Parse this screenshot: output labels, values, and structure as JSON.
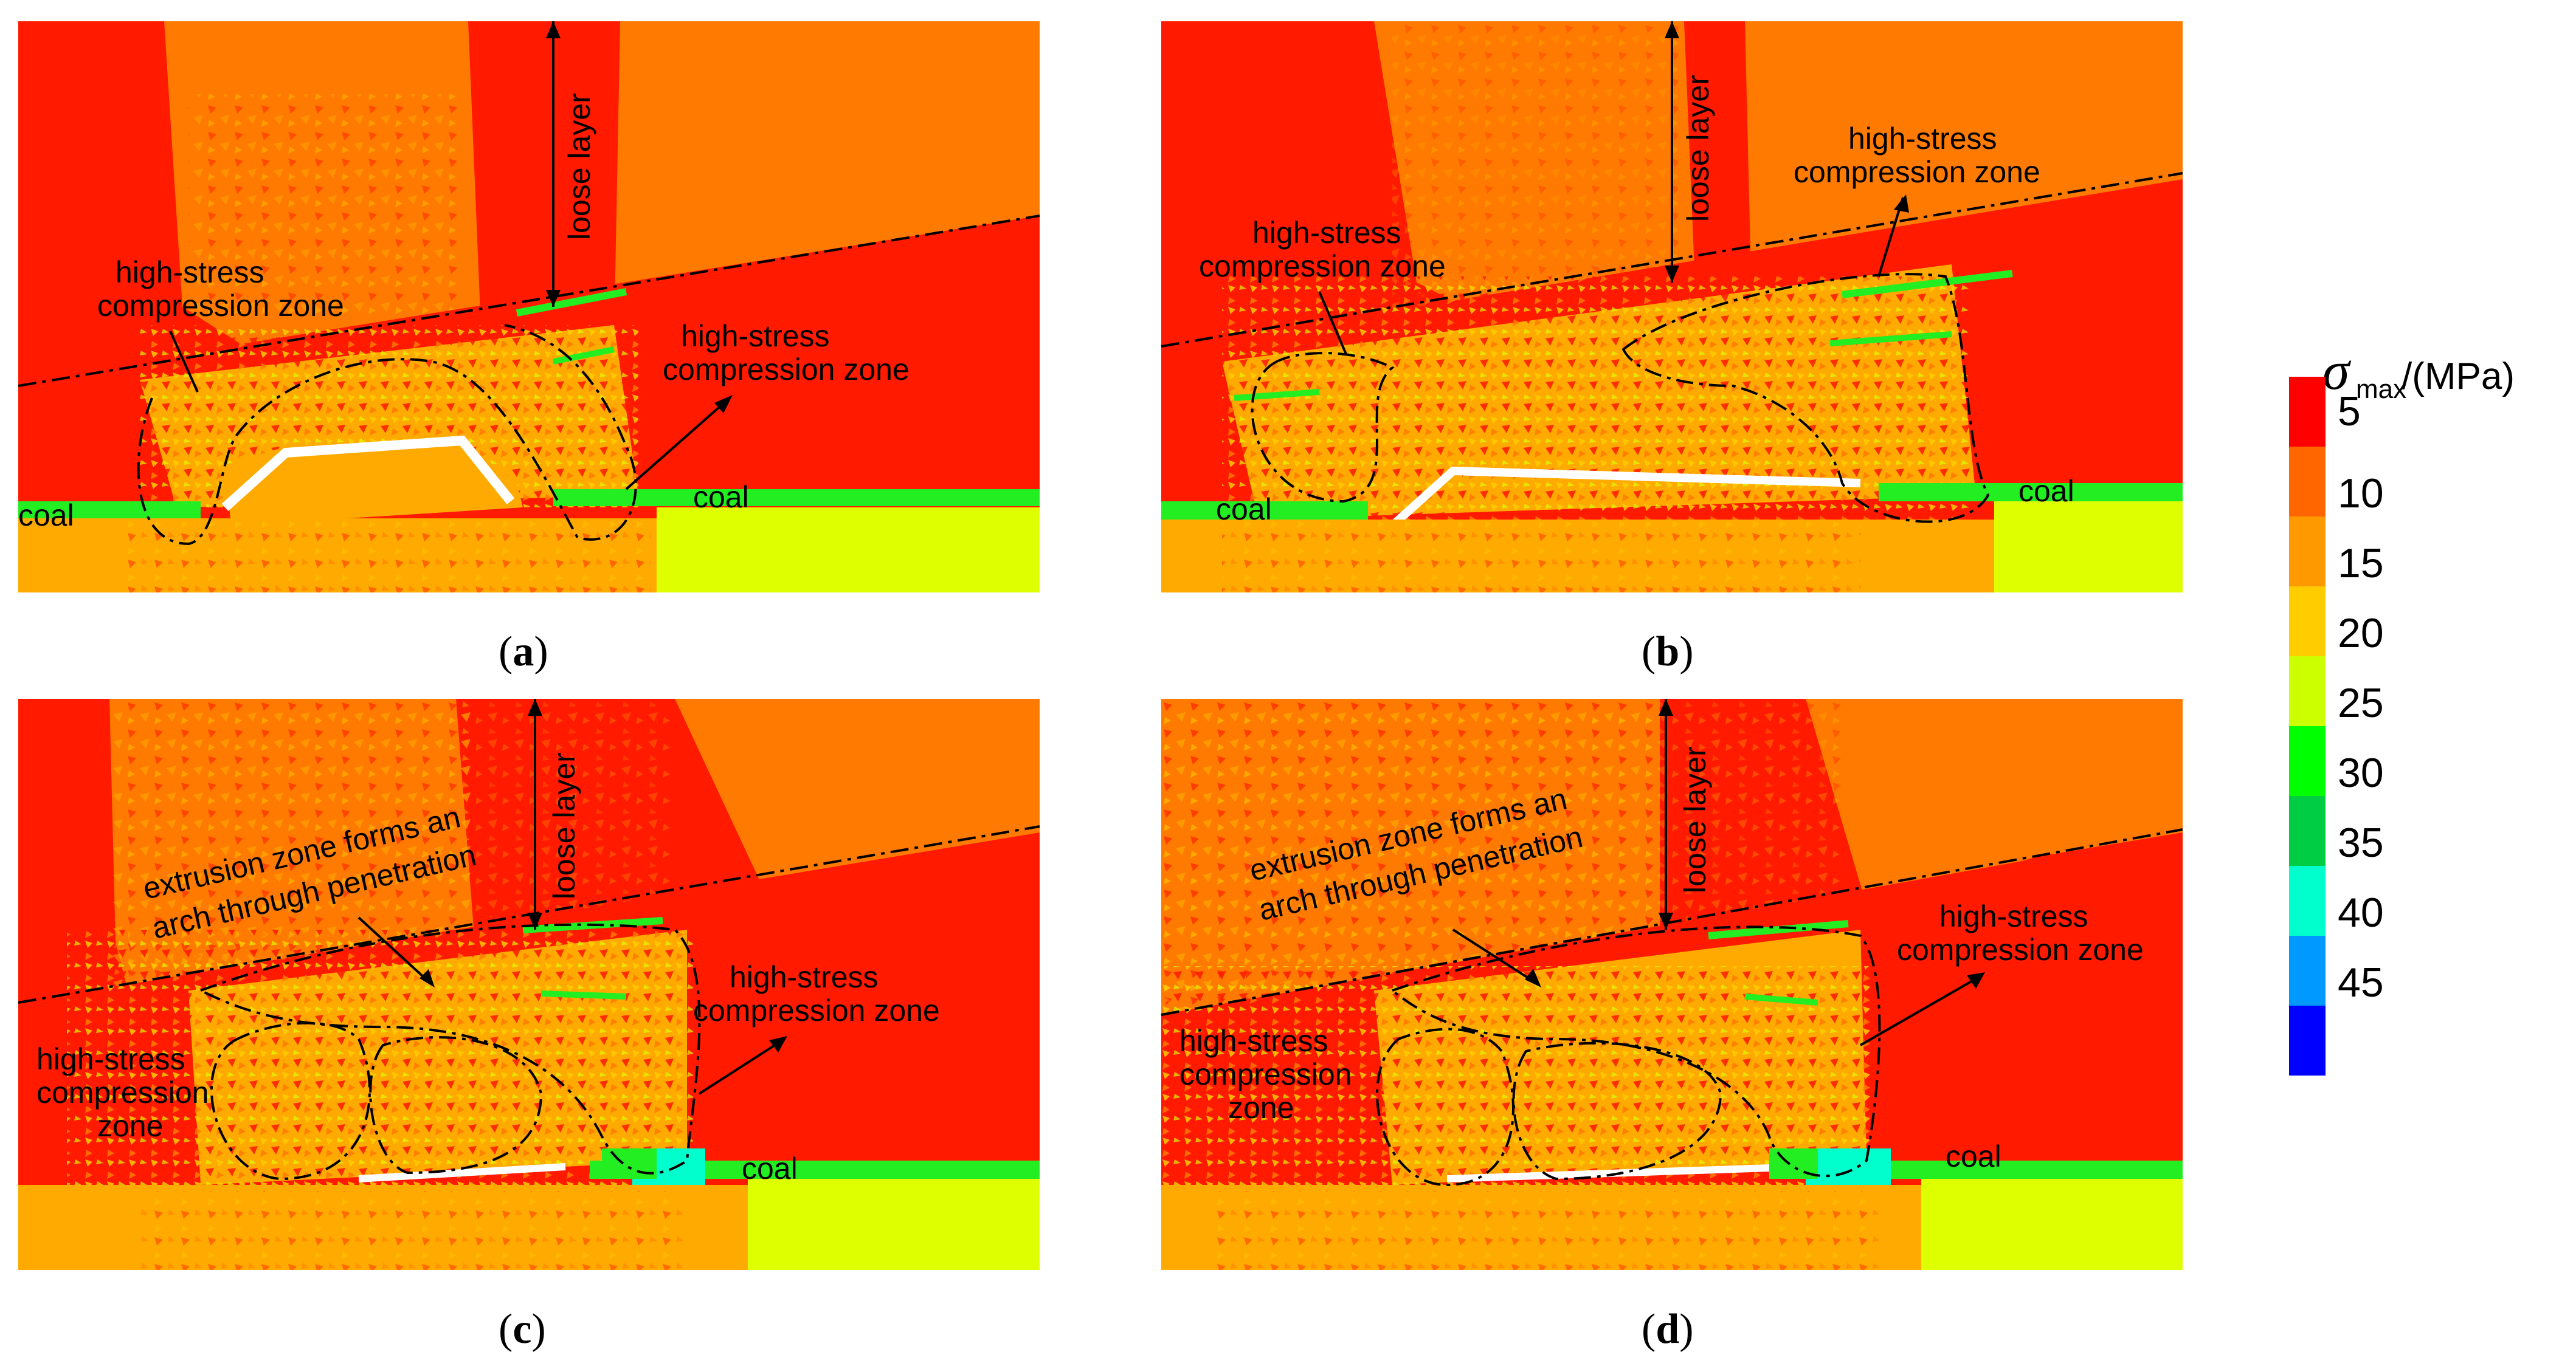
{
  "panels": [
    {
      "id": "a",
      "caption_letter": "a",
      "labels": {
        "loose": "loose layer",
        "hs_left": "high-stress\ncompression zone",
        "hs_right": "high-stress\ncompression zone",
        "coal_left": "coal",
        "coal_right": "coal"
      }
    },
    {
      "id": "b",
      "caption_letter": "b",
      "labels": {
        "loose": "loose layer",
        "hs_left": "high-stress\ncompression zone",
        "hs_right": "high-stress\ncompression zone",
        "coal_left": "coal",
        "coal_right": "coal"
      }
    },
    {
      "id": "c",
      "caption_letter": "c",
      "labels": {
        "loose": "loose layer",
        "extrusion": "extrusion zone forms an\narch through penetration",
        "hs_right": "high-stress\ncompression zone",
        "hs_left": "high-stress\ncompression\nzone",
        "coal_right": "coal"
      }
    },
    {
      "id": "d",
      "caption_letter": "d",
      "labels": {
        "loose": "loose layer",
        "extrusion": "extrusion zone forms an\narch through penetration",
        "hs_right": "high-stress\ncompression zone",
        "hs_left": "high-stress\ncompression\nzone",
        "coal_right": "coal"
      }
    }
  ],
  "legend": {
    "symbol": "σ",
    "subscript": "max",
    "unit": " /(MPa)",
    "ticks": [
      "5",
      "10",
      "15",
      "20",
      "25",
      "30",
      "35",
      "40",
      "45"
    ],
    "colors": [
      "#ff0000",
      "#ff6600",
      "#ff9900",
      "#ffcc00",
      "#ccff00",
      "#00ff00",
      "#00cc44",
      "#00ffcc",
      "#0099ff",
      "#0000ff"
    ]
  },
  "palette": {
    "red": "#ff1a00",
    "orange": "#ff7a00",
    "amber": "#ffaa00",
    "yellow": "#ffcc00",
    "lime": "#ddff00",
    "green": "#22ee22",
    "white": "#ffffff"
  }
}
